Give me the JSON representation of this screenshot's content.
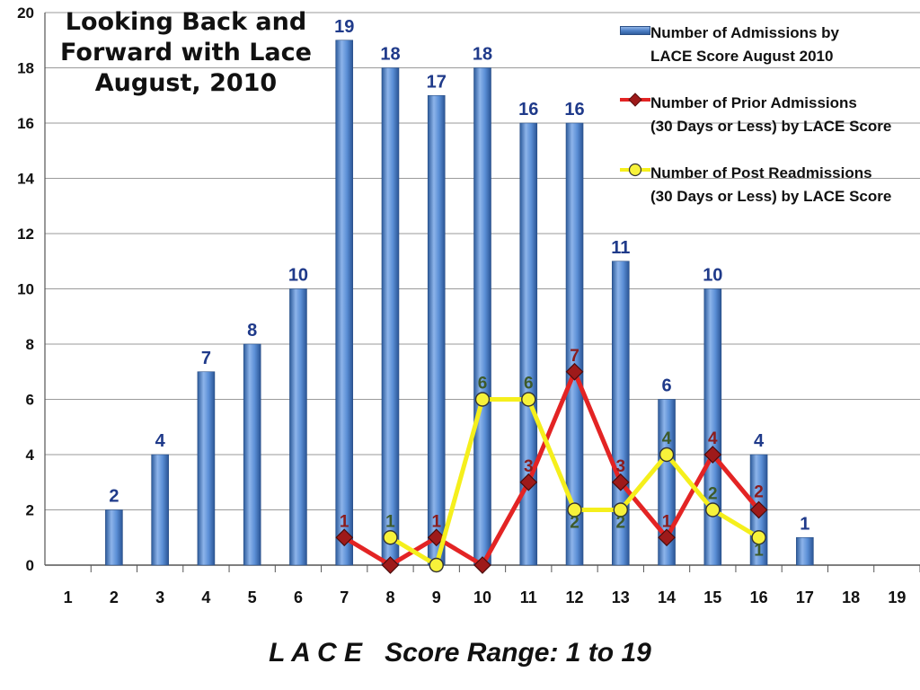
{
  "title": {
    "lines": [
      "Looking Back and",
      "Forward with Lace",
      "August, 2010"
    ]
  },
  "x_axis_title": "L A C E   Score Range: 1 to 19",
  "legend": [
    {
      "label_lines": [
        "Number of Admissions by",
        "LACE Score August 2010"
      ],
      "marker": "bar",
      "color": "#4f81c7"
    },
    {
      "label_lines": [
        "Number of Prior Admissions",
        "(30 Days or Less) by LACE Score"
      ],
      "marker": "diamond",
      "color": "#e32424"
    },
    {
      "label_lines": [
        "Number of Post Readmissions",
        "(30 Days or Less) by LACE Score"
      ],
      "marker": "circle",
      "color": "#f5ef1c"
    }
  ],
  "chart_data": {
    "type": "bar",
    "categories": [
      "1",
      "2",
      "3",
      "4",
      "5",
      "6",
      "7",
      "8",
      "9",
      "10",
      "11",
      "12",
      "13",
      "14",
      "15",
      "16",
      "17",
      "18",
      "19"
    ],
    "y_ticks": [
      "0",
      "2",
      "4",
      "6",
      "8",
      "10",
      "12",
      "14",
      "16",
      "18",
      "20"
    ],
    "ylim": [
      0,
      20
    ],
    "grid": true,
    "legend_position": "top-right",
    "series": [
      {
        "name": "Number of Admissions by LACE Score August 2010",
        "type": "bar",
        "color": "#4f81c7",
        "label_color": "#1f3a8a",
        "values": [
          null,
          2,
          4,
          7,
          8,
          10,
          19,
          18,
          17,
          18,
          16,
          16,
          11,
          6,
          10,
          4,
          1,
          null,
          null
        ]
      },
      {
        "name": "Number of Prior Admissions (30 Days or Less) by LACE Score",
        "type": "line",
        "marker": "diamond",
        "color": "#e32424",
        "marker_color": "#9e1a1a",
        "label_color": "#8b1c1c",
        "values": [
          null,
          null,
          null,
          null,
          null,
          null,
          1,
          0,
          1,
          0,
          3,
          7,
          3,
          1,
          4,
          2,
          null,
          null,
          null
        ],
        "point_labels": [
          "",
          "",
          "",
          "",
          "",
          "",
          "1",
          "",
          "1",
          "",
          "3",
          "7",
          "3",
          "1",
          "4",
          "2",
          "",
          "",
          ""
        ]
      },
      {
        "name": "Number of Post Readmissions (30 Days or Less) by LACE Score",
        "type": "line",
        "marker": "circle",
        "color": "#f5ef1c",
        "label_color": "#3d5a2a",
        "values": [
          null,
          null,
          null,
          null,
          null,
          null,
          null,
          1,
          0,
          6,
          6,
          2,
          2,
          4,
          2,
          1,
          null,
          null,
          null
        ],
        "point_labels": [
          "",
          "",
          "",
          "",
          "",
          "",
          "",
          "1",
          "",
          "6",
          "6",
          "2",
          "2",
          "4",
          "2",
          "1",
          "",
          "",
          ""
        ]
      }
    ]
  }
}
